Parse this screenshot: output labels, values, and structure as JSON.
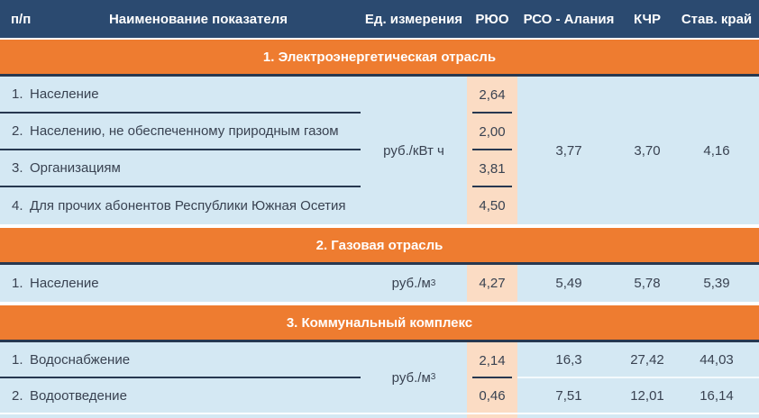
{
  "chart_data": {
    "type": "table",
    "columns": [
      "п/п",
      "Наименование показателя",
      "Ед. измерения",
      "РЮО",
      "РСО - Алания",
      "КЧР",
      "Став. край"
    ],
    "sections": [
      {
        "title": "1. Электроэнергетическая отрасль",
        "unit": "руб./кВт ч",
        "unit_sup": "",
        "rows": [
          {
            "num": "1.",
            "name": "Население",
            "ryuo": "2,64"
          },
          {
            "num": "2.",
            "name": "Населению, не обеспеченному природным газом",
            "ryuo": "2,00"
          },
          {
            "num": "3.",
            "name": "Организациям",
            "ryuo": "3,81"
          },
          {
            "num": "4.",
            "name": "Для прочих абонентов Республики Южная Осетия",
            "ryuo": "4,50"
          }
        ],
        "merged": {
          "rso": "3,77",
          "kchr": "3,70",
          "stav": "4,16"
        }
      },
      {
        "title": "2. Газовая отрасль",
        "unit": "руб./м",
        "unit_sup": "3",
        "rows": [
          {
            "num": "1.",
            "name": "Население",
            "ryuo": "4,27",
            "rso": "5,49",
            "kchr": "5,78",
            "stav": "5,39"
          }
        ]
      },
      {
        "title": "3. Коммунальный комплекс",
        "unit": "руб./м",
        "unit_sup": "3",
        "rows": [
          {
            "num": "1.",
            "name": "Водоснабжение",
            "ryuo": "2,14",
            "rso": "16,3",
            "kchr": "27,42",
            "stav": "44,03"
          },
          {
            "num": "2.",
            "name": "Водоотведение",
            "ryuo": "0,46",
            "rso": "7,51",
            "kchr": "12,01",
            "stav": "16,14"
          }
        ]
      }
    ],
    "colors": {
      "header_bg": "#2B4A70",
      "section_banner_bg": "#EE7C30",
      "row_bg": "#D4E8F3",
      "highlight_column_bg": "#FBDCC4",
      "divider_dark": "#273850",
      "text_dark": "#394251",
      "text_light": "#FFFFFF"
    },
    "layout": {
      "highlighted_column": "РЮО",
      "grid": "sections separated by orange banners"
    }
  }
}
